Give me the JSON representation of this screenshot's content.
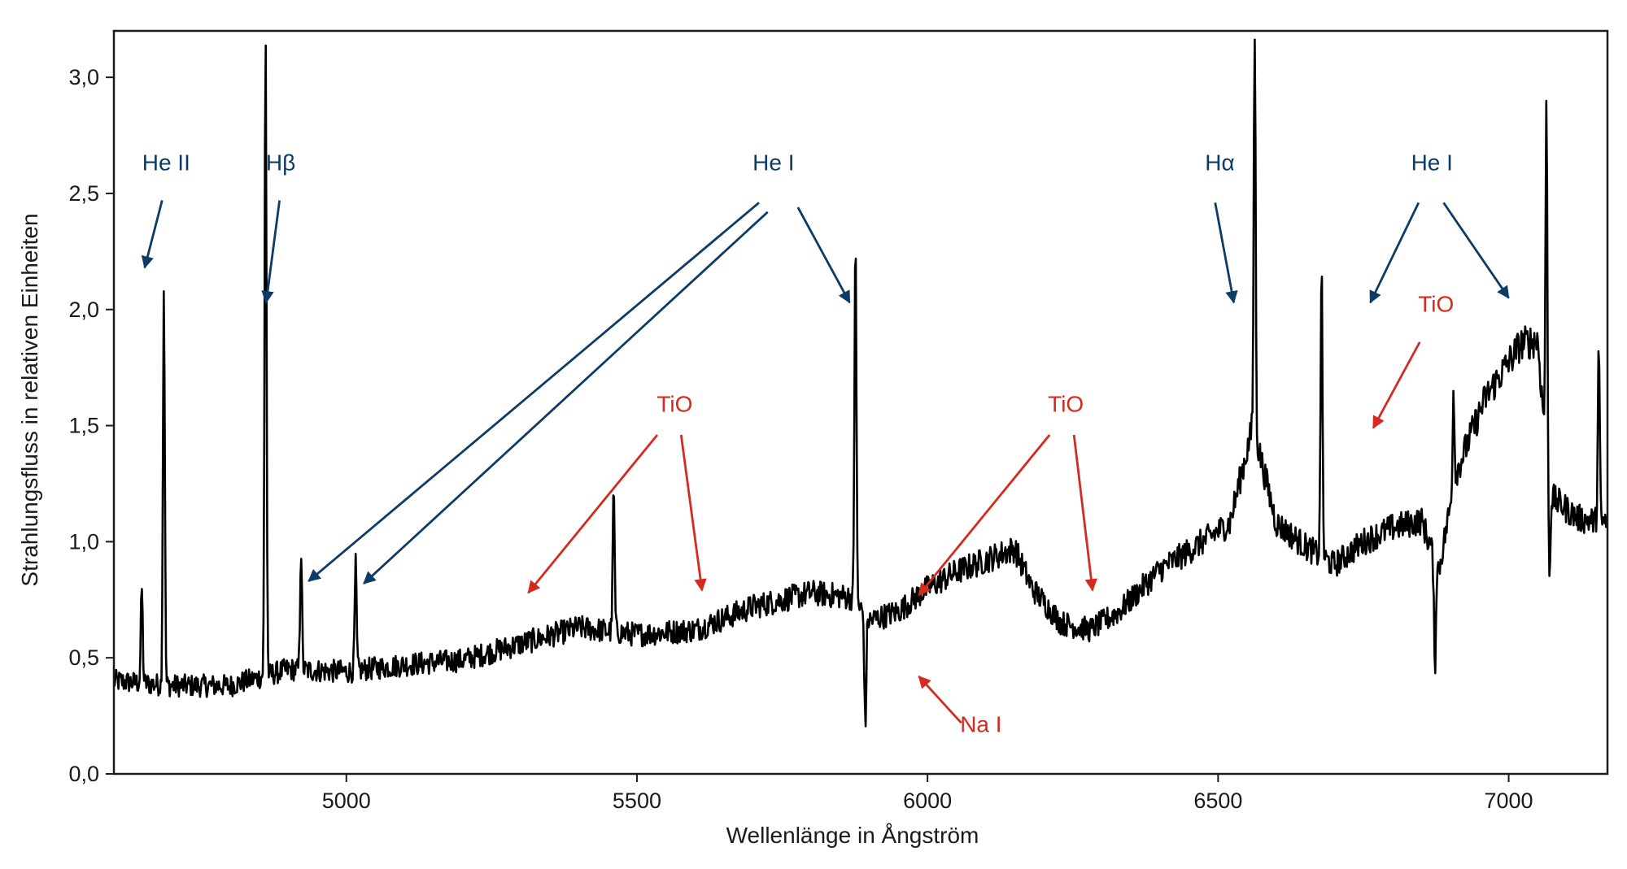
{
  "chart_data": {
    "type": "line",
    "title": "",
    "xlabel": "Wellenlänge in Ångström",
    "ylabel": "Strahlungsfluss in relativen Einheiten",
    "xlim": [
      4600,
      7170
    ],
    "ylim": [
      0,
      3.2
    ],
    "grid": false,
    "legend": "none",
    "x_ticks": [
      5000,
      5500,
      6000,
      6500,
      7000
    ],
    "x_tick_labels": [
      "5000",
      "5500",
      "6000",
      "6500",
      "7000"
    ],
    "y_ticks": [
      0,
      0.5,
      1,
      1.5,
      2,
      2.5,
      3
    ],
    "y_tick_labels": [
      "0,0",
      "0,5",
      "1,0",
      "1,5",
      "2,0",
      "2,5",
      "3,0"
    ],
    "colors": {
      "line": "#000000",
      "blue": "#0d3b66",
      "red": "#d42a1f",
      "axis": "#1a1a1a"
    },
    "series": [
      {
        "continuum": {
          "x": [
            4600,
            4700,
            4800,
            4900,
            5000,
            5100,
            5200,
            5300,
            5400,
            5500,
            5600,
            5700,
            5800,
            5870,
            5900,
            5950,
            6000,
            6050,
            6100,
            6150,
            6180,
            6230,
            6280,
            6330,
            6400,
            6450,
            6520,
            6560,
            6600,
            6650,
            6700,
            6750,
            6800,
            6850,
            6880,
            6910,
            6960,
            7020,
            7050,
            7070,
            7120,
            7170
          ],
          "y": [
            0.4,
            0.38,
            0.38,
            0.45,
            0.44,
            0.47,
            0.49,
            0.56,
            0.63,
            0.6,
            0.62,
            0.72,
            0.78,
            0.76,
            0.66,
            0.7,
            0.8,
            0.87,
            0.92,
            0.97,
            0.8,
            0.65,
            0.62,
            0.7,
            0.88,
            0.96,
            1.08,
            1.5,
            1.08,
            0.98,
            0.9,
            1.0,
            1.06,
            1.09,
            0.88,
            1.3,
            1.62,
            1.85,
            1.87,
            1.2,
            1.1,
            1.08
          ]
        },
        "noise": 0.06,
        "features": [
          {
            "x": 4648,
            "y": 0.8
          },
          {
            "x": 4686,
            "y": 2.1
          },
          {
            "x": 4861,
            "y": 3.2
          },
          {
            "x": 4922,
            "y": 0.97
          },
          {
            "x": 5016,
            "y": 0.9
          },
          {
            "x": 5460,
            "y": 1.23
          },
          {
            "x": 5876,
            "y": 2.35
          },
          {
            "x": 5893,
            "y": 0.2
          },
          {
            "x": 6563,
            "y": 3.2
          },
          {
            "x": 6678,
            "y": 2.2
          },
          {
            "x": 6873,
            "y": 0.45
          },
          {
            "x": 6905,
            "y": 1.65
          },
          {
            "x": 7065,
            "y": 2.86
          },
          {
            "x": 7070,
            "y": 0.85
          },
          {
            "x": 7155,
            "y": 1.83
          }
        ]
      }
    ],
    "annotations": [
      {
        "label": "He II",
        "color": "blue",
        "text_at": [
          4690,
          2.6
        ],
        "arrows": [
          [
            [
              4683,
              2.47
            ],
            [
              4653,
              2.18
            ]
          ]
        ]
      },
      {
        "label": "Hβ",
        "color": "blue",
        "text_at": [
          4887,
          2.6
        ],
        "arrows": [
          [
            [
              4885,
              2.47
            ],
            [
              4862,
              2.03
            ]
          ]
        ]
      },
      {
        "label": "He I",
        "color": "blue",
        "text_at": [
          5735,
          2.6
        ],
        "arrows": [
          [
            [
              5710,
              2.46
            ],
            [
              4935,
              0.83
            ]
          ],
          [
            [
              5725,
              2.42
            ],
            [
              5030,
              0.82
            ]
          ],
          [
            [
              5777,
              2.44
            ],
            [
              5866,
              2.03
            ]
          ]
        ]
      },
      {
        "label": "TiO",
        "color": "red",
        "text_at": [
          5565,
          1.56
        ],
        "arrows": [
          [
            [
              5535,
              1.46
            ],
            [
              5313,
              0.78
            ]
          ],
          [
            [
              5576,
              1.46
            ],
            [
              5612,
              0.79
            ]
          ]
        ]
      },
      {
        "label": "TiO",
        "color": "red",
        "text_at": [
          6238,
          1.56
        ],
        "arrows": [
          [
            [
              6210,
              1.46
            ],
            [
              5985,
              0.77
            ]
          ],
          [
            [
              6252,
              1.46
            ],
            [
              6284,
              0.79
            ]
          ]
        ]
      },
      {
        "label": "Na I",
        "color": "red",
        "text_at": [
          6092,
          0.18
        ],
        "arrows": [
          [
            [
              6058,
              0.22
            ],
            [
              5985,
              0.42
            ]
          ]
        ]
      },
      {
        "label": "Hα",
        "color": "blue",
        "text_at": [
          6503,
          2.6
        ],
        "arrows": [
          [
            [
              6495,
              2.46
            ],
            [
              6527,
              2.03
            ]
          ]
        ]
      },
      {
        "label": "He I",
        "color": "blue",
        "text_at": [
          6868,
          2.6
        ],
        "arrows": [
          [
            [
              6845,
              2.46
            ],
            [
              6762,
              2.03
            ]
          ],
          [
            [
              6888,
              2.46
            ],
            [
              7000,
              2.05
            ]
          ]
        ]
      },
      {
        "label": "TiO",
        "color": "red",
        "text_at": [
          6875,
          1.99
        ],
        "arrows": [
          [
            [
              6847,
              1.86
            ],
            [
              6767,
              1.49
            ]
          ]
        ]
      }
    ]
  }
}
